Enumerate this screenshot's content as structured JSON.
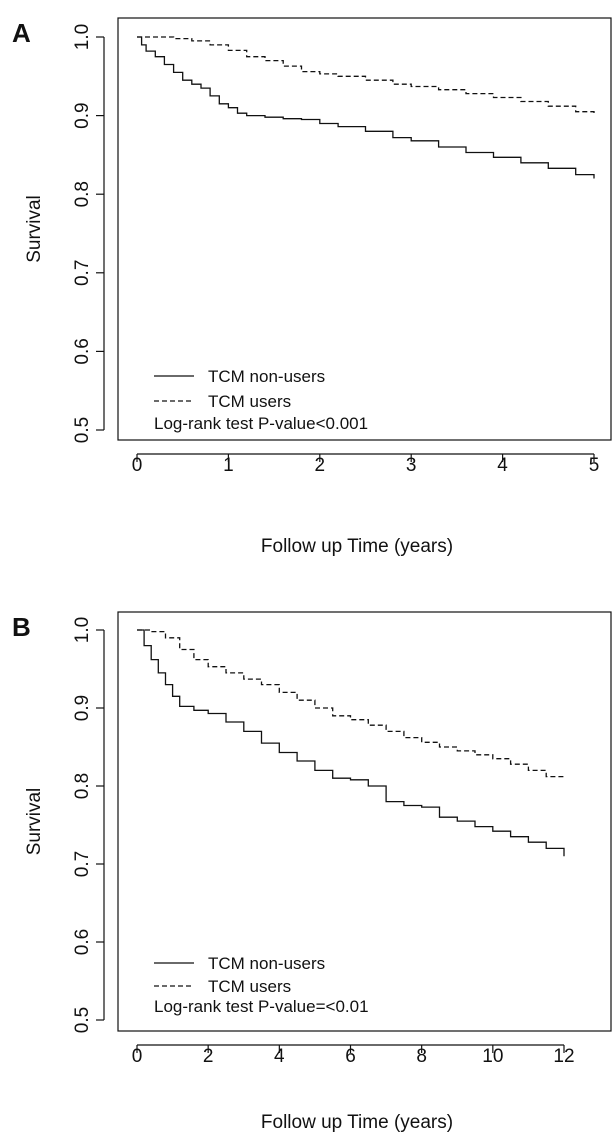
{
  "chart_data": [
    {
      "type": "line",
      "panel_label": "A",
      "xlabel": "Follow up Time (years)",
      "ylabel": "Survival",
      "xlim": [
        0,
        5
      ],
      "ylim": [
        0.5,
        1.0
      ],
      "x_ticks": [
        0,
        1,
        2,
        3,
        4,
        5
      ],
      "y_ticks": [
        0.5,
        0.6,
        0.7,
        0.8,
        0.9,
        1.0
      ],
      "x_tick_labels": [
        "0",
        "1",
        "2",
        "3",
        "4",
        "5"
      ],
      "y_tick_labels": [
        "0.5",
        "0.6",
        "0.7",
        "0.8",
        "0.9",
        "1.0"
      ],
      "grid": false,
      "legend_position": "bottom-left",
      "annotation": "Log-rank test P-value<0.001",
      "series": [
        {
          "name": "TCM non-users",
          "line_style": "solid",
          "color": "#111111",
          "x": [
            0,
            0.05,
            0.1,
            0.2,
            0.3,
            0.4,
            0.5,
            0.6,
            0.7,
            0.8,
            0.9,
            1.0,
            1.1,
            1.2,
            1.4,
            1.6,
            1.8,
            2.0,
            2.2,
            2.5,
            2.8,
            3.0,
            3.3,
            3.6,
            3.9,
            4.2,
            4.5,
            4.8,
            5.0
          ],
          "y": [
            1.0,
            0.99,
            0.982,
            0.975,
            0.965,
            0.955,
            0.945,
            0.94,
            0.935,
            0.925,
            0.915,
            0.91,
            0.903,
            0.9,
            0.898,
            0.896,
            0.895,
            0.89,
            0.886,
            0.88,
            0.872,
            0.868,
            0.86,
            0.853,
            0.847,
            0.84,
            0.833,
            0.825,
            0.82
          ]
        },
        {
          "name": "TCM users",
          "line_style": "dashed",
          "color": "#111111",
          "x": [
            0,
            0.2,
            0.4,
            0.6,
            0.8,
            1.0,
            1.2,
            1.4,
            1.6,
            1.8,
            2.0,
            2.2,
            2.5,
            2.8,
            3.0,
            3.3,
            3.6,
            3.9,
            4.2,
            4.5,
            4.8,
            5.0
          ],
          "y": [
            1.0,
            1.0,
            0.998,
            0.995,
            0.99,
            0.983,
            0.975,
            0.97,
            0.963,
            0.956,
            0.953,
            0.95,
            0.945,
            0.94,
            0.937,
            0.933,
            0.928,
            0.923,
            0.918,
            0.912,
            0.905,
            0.9
          ]
        }
      ]
    },
    {
      "type": "line",
      "panel_label": "B",
      "xlabel": "Follow up Time (years)",
      "ylabel": "Survival",
      "xlim": [
        0,
        12
      ],
      "ylim": [
        0.5,
        1.0
      ],
      "x_ticks": [
        0,
        2,
        4,
        6,
        8,
        10,
        12
      ],
      "y_ticks": [
        0.5,
        0.6,
        0.7,
        0.8,
        0.9,
        1.0
      ],
      "x_tick_labels": [
        "0",
        "2",
        "4",
        "6",
        "8",
        "10",
        "12"
      ],
      "y_tick_labels": [
        "0.5",
        "0.6",
        "0.7",
        "0.8",
        "0.9",
        "1.0"
      ],
      "grid": false,
      "legend_position": "bottom-left",
      "annotation": "Log-rank test P-value=<0.01",
      "series": [
        {
          "name": "TCM non-users",
          "line_style": "solid",
          "color": "#111111",
          "x": [
            0,
            0.2,
            0.4,
            0.6,
            0.8,
            1.0,
            1.2,
            1.6,
            2.0,
            2.5,
            3.0,
            3.5,
            4.0,
            4.5,
            5.0,
            5.5,
            6.0,
            6.5,
            7.0,
            7.5,
            8.0,
            8.5,
            9.0,
            9.5,
            10.0,
            10.5,
            11.0,
            11.5,
            12.0
          ],
          "y": [
            1.0,
            0.98,
            0.962,
            0.945,
            0.93,
            0.915,
            0.902,
            0.897,
            0.893,
            0.882,
            0.87,
            0.855,
            0.843,
            0.832,
            0.82,
            0.81,
            0.808,
            0.8,
            0.78,
            0.775,
            0.773,
            0.76,
            0.755,
            0.748,
            0.742,
            0.735,
            0.728,
            0.72,
            0.71
          ]
        },
        {
          "name": "TCM users",
          "line_style": "dashed",
          "color": "#111111",
          "x": [
            0,
            0.4,
            0.8,
            1.2,
            1.6,
            2.0,
            2.5,
            3.0,
            3.5,
            4.0,
            4.5,
            5.0,
            5.5,
            6.0,
            6.5,
            7.0,
            7.5,
            8.0,
            8.5,
            9.0,
            9.5,
            10.0,
            10.5,
            11.0,
            11.5,
            12.0
          ],
          "y": [
            1.0,
            0.998,
            0.99,
            0.975,
            0.962,
            0.953,
            0.945,
            0.937,
            0.93,
            0.92,
            0.91,
            0.9,
            0.89,
            0.885,
            0.878,
            0.87,
            0.862,
            0.856,
            0.85,
            0.845,
            0.84,
            0.835,
            0.828,
            0.82,
            0.812,
            0.812
          ]
        }
      ]
    }
  ]
}
